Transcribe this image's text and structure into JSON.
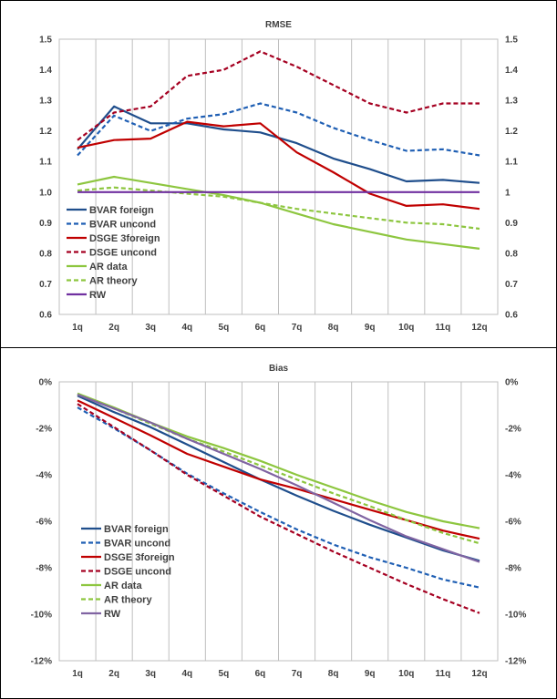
{
  "chart_data": [
    {
      "type": "line",
      "title": "RMSE",
      "categories": [
        "1q",
        "2q",
        "3q",
        "4q",
        "5q",
        "6q",
        "7q",
        "8q",
        "9q",
        "10q",
        "11q",
        "12q"
      ],
      "ylim": [
        0.6,
        1.5
      ],
      "y_ticks_left": [
        "0.6",
        "0.7",
        "0.8",
        "0.9",
        "1.0",
        "1.1",
        "1.2",
        "1.3",
        "1.4",
        "1.5"
      ],
      "y_ticks_right": [
        "0.6",
        "0.7",
        "0.8",
        "0.9",
        "1",
        "1.1",
        "1.2",
        "1.3",
        "1.4",
        "1.5"
      ],
      "grid": "vertical",
      "legend_position": "bottom-left",
      "series": [
        {
          "name": "BVAR foreign",
          "color": "#1f4e8c",
          "dash": "solid",
          "values": [
            1.14,
            1.28,
            1.225,
            1.225,
            1.205,
            1.195,
            1.16,
            1.11,
            1.075,
            1.035,
            1.04,
            1.03
          ]
        },
        {
          "name": "BVAR uncond",
          "color": "#1f5fb4",
          "dash": "dashed",
          "values": [
            1.12,
            1.25,
            1.2,
            1.24,
            1.255,
            1.29,
            1.26,
            1.21,
            1.17,
            1.135,
            1.14,
            1.12
          ]
        },
        {
          "name": "DSGE 3foreign",
          "color": "#c00000",
          "dash": "solid",
          "values": [
            1.145,
            1.17,
            1.175,
            1.23,
            1.215,
            1.225,
            1.13,
            1.065,
            0.995,
            0.955,
            0.96,
            0.945
          ]
        },
        {
          "name": "DSGE uncond",
          "color": "#a50021",
          "dash": "dashed",
          "values": [
            1.17,
            1.26,
            1.28,
            1.38,
            1.4,
            1.46,
            1.41,
            1.35,
            1.29,
            1.26,
            1.29,
            1.29
          ]
        },
        {
          "name": "AR data",
          "color": "#8dc63f",
          "dash": "solid",
          "values": [
            1.025,
            1.05,
            1.03,
            1.01,
            0.99,
            0.965,
            0.93,
            0.895,
            0.87,
            0.845,
            0.83,
            0.815
          ]
        },
        {
          "name": "AR theory",
          "color": "#8dc63f",
          "dash": "dashed",
          "values": [
            1.005,
            1.015,
            1.005,
            0.995,
            0.985,
            0.965,
            0.945,
            0.93,
            0.915,
            0.9,
            0.895,
            0.88
          ]
        },
        {
          "name": "RW",
          "color": "#7030a0",
          "dash": "solid",
          "values": [
            1.0,
            1.0,
            1.0,
            1.0,
            1.0,
            1.0,
            1.0,
            1.0,
            1.0,
            1.0,
            1.0,
            1.0
          ]
        }
      ]
    },
    {
      "type": "line",
      "title": "Bias",
      "categories": [
        "1q",
        "2q",
        "3q",
        "4q",
        "5q",
        "6q",
        "7q",
        "8q",
        "9q",
        "10q",
        "11q",
        "12q"
      ],
      "ylim": [
        -12,
        0
      ],
      "y_unit": "percent",
      "y_ticks_left": [
        "-12%",
        "-10%",
        "-8%",
        "-6%",
        "-4%",
        "-2%",
        "0%"
      ],
      "y_ticks_right": [
        "-12%",
        "-10%",
        "-8%",
        "-6%",
        "-4%",
        "-2%",
        "0%"
      ],
      "grid": "vertical",
      "legend_position": "bottom-left",
      "series": [
        {
          "name": "BVAR foreign",
          "color": "#1f4e8c",
          "dash": "solid",
          "values": [
            -0.6,
            -1.3,
            -1.95,
            -2.7,
            -3.45,
            -4.2,
            -4.9,
            -5.55,
            -6.15,
            -6.7,
            -7.25,
            -7.7
          ]
        },
        {
          "name": "BVAR uncond",
          "color": "#1f5fb4",
          "dash": "dashed",
          "values": [
            -1.1,
            -2.0,
            -2.95,
            -3.95,
            -4.8,
            -5.6,
            -6.35,
            -7.0,
            -7.55,
            -8.0,
            -8.5,
            -8.85
          ]
        },
        {
          "name": "DSGE 3foreign",
          "color": "#c00000",
          "dash": "solid",
          "values": [
            -0.8,
            -1.55,
            -2.3,
            -3.1,
            -3.65,
            -4.2,
            -4.6,
            -5.05,
            -5.5,
            -5.95,
            -6.4,
            -6.75
          ]
        },
        {
          "name": "DSGE uncond",
          "color": "#a50021",
          "dash": "dashed",
          "values": [
            -0.95,
            -1.95,
            -2.95,
            -4.0,
            -4.9,
            -5.8,
            -6.55,
            -7.3,
            -8.0,
            -8.7,
            -9.35,
            -9.95
          ]
        },
        {
          "name": "AR data",
          "color": "#8dc63f",
          "dash": "solid",
          "values": [
            -0.5,
            -1.1,
            -1.75,
            -2.35,
            -2.85,
            -3.4,
            -4.0,
            -4.55,
            -5.1,
            -5.6,
            -6.0,
            -6.3
          ]
        },
        {
          "name": "AR theory",
          "color": "#8dc63f",
          "dash": "dashed",
          "values": [
            -0.55,
            -1.15,
            -1.8,
            -2.45,
            -3.0,
            -3.6,
            -4.2,
            -4.8,
            -5.35,
            -5.95,
            -6.5,
            -6.95
          ]
        },
        {
          "name": "RW",
          "color": "#8064a2",
          "dash": "solid",
          "values": [
            -0.55,
            -1.15,
            -1.75,
            -2.45,
            -3.1,
            -3.75,
            -4.45,
            -5.2,
            -5.95,
            -6.65,
            -7.2,
            -7.75
          ]
        }
      ]
    }
  ]
}
